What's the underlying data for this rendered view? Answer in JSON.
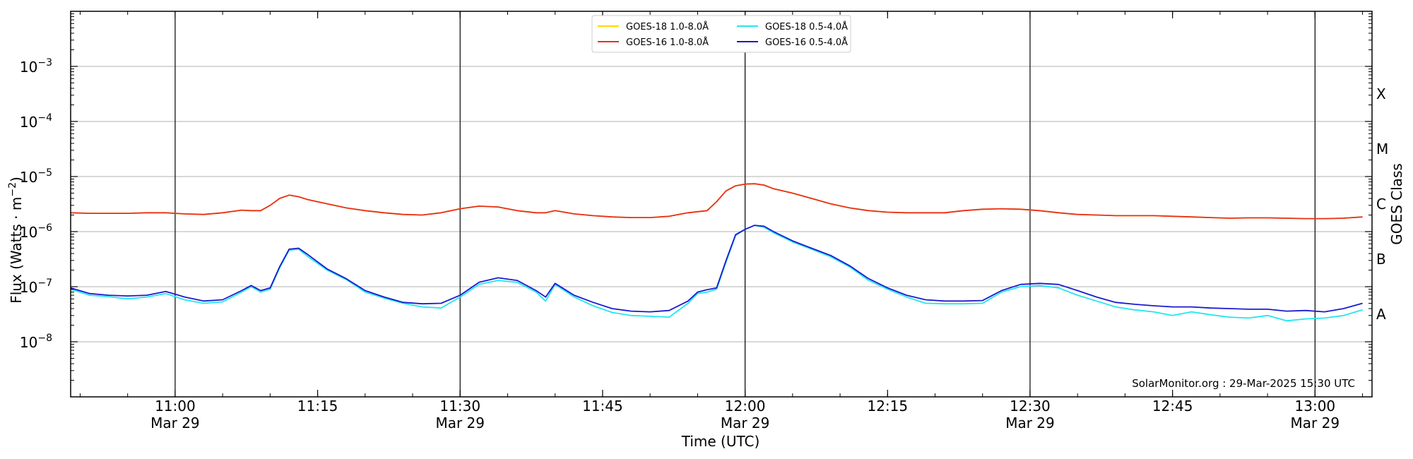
{
  "chart_data": {
    "type": "line",
    "xlabel": "Time (UTC)",
    "ylabel": "Flux (Watts · m",
    "ylabel_sup": "−2",
    "ylabel_close": ")",
    "right_label": "GOES Class",
    "credit": "SolarMonitor.org : 29-Mar-2025 15:30 UTC",
    "xlim": [
      "10:49",
      "13:06"
    ],
    "ylim_log10": [
      -9,
      -2
    ],
    "grid": "horizontal",
    "legend_placement": "top-center",
    "x_ticks": [
      {
        "time": "11:00",
        "line1": "11:00",
        "line2": "Mar 29",
        "major": true
      },
      {
        "time": "11:15",
        "line1": "11:15",
        "line2": "",
        "major": false
      },
      {
        "time": "11:30",
        "line1": "11:30",
        "line2": "Mar 29",
        "major": true
      },
      {
        "time": "11:45",
        "line1": "11:45",
        "line2": "",
        "major": false
      },
      {
        "time": "12:00",
        "line1": "12:00",
        "line2": "Mar 29",
        "major": true
      },
      {
        "time": "12:15",
        "line1": "12:15",
        "line2": "",
        "major": false
      },
      {
        "time": "12:30",
        "line1": "12:30",
        "line2": "Mar 29",
        "major": true
      },
      {
        "time": "12:45",
        "line1": "12:45",
        "line2": "",
        "major": false
      },
      {
        "time": "13:00",
        "line1": "13:00",
        "line2": "Mar 29",
        "major": true
      }
    ],
    "y_ticks": [
      {
        "exp": -8,
        "base": "10",
        "sup": "−8"
      },
      {
        "exp": -7,
        "base": "10",
        "sup": "−7"
      },
      {
        "exp": -6,
        "base": "10",
        "sup": "−6"
      },
      {
        "exp": -5,
        "base": "10",
        "sup": "−5"
      },
      {
        "exp": -4,
        "base": "10",
        "sup": "−4"
      },
      {
        "exp": -3,
        "base": "10",
        "sup": "−3"
      }
    ],
    "goes_classes": [
      {
        "label": "A",
        "exp": -7.5
      },
      {
        "label": "B",
        "exp": -6.5
      },
      {
        "label": "C",
        "exp": -5.5
      },
      {
        "label": "M",
        "exp": -4.5
      },
      {
        "label": "X",
        "exp": -3.5
      }
    ],
    "x": [
      "10:49",
      "10:51",
      "10:53",
      "10:55",
      "10:57",
      "10:59",
      "11:01",
      "11:03",
      "11:05",
      "11:07",
      "11:08",
      "11:09",
      "11:10",
      "11:11",
      "11:12",
      "11:13",
      "11:14",
      "11:16",
      "11:18",
      "11:20",
      "11:22",
      "11:24",
      "11:26",
      "11:28",
      "11:30",
      "11:32",
      "11:34",
      "11:36",
      "11:38",
      "11:39",
      "11:40",
      "11:42",
      "11:44",
      "11:46",
      "11:48",
      "11:50",
      "11:52",
      "11:54",
      "11:55",
      "11:56",
      "11:57",
      "11:58",
      "11:59",
      "12:00",
      "12:01",
      "12:02",
      "12:03",
      "12:05",
      "12:07",
      "12:09",
      "12:11",
      "12:13",
      "12:15",
      "12:17",
      "12:19",
      "12:21",
      "12:23",
      "12:25",
      "12:27",
      "12:29",
      "12:31",
      "12:33",
      "12:35",
      "12:37",
      "12:39",
      "12:41",
      "12:43",
      "12:45",
      "12:47",
      "12:49",
      "12:51",
      "12:53",
      "12:55",
      "12:57",
      "12:59",
      "13:01",
      "13:03",
      "13:05"
    ],
    "series": [
      {
        "name": "GOES-18 1.0-8.0Å",
        "color": "#ffd700",
        "values": [
          2.2e-06,
          2.15e-06,
          2.15e-06,
          2.15e-06,
          2.2e-06,
          2.2e-06,
          2.1e-06,
          2.05e-06,
          2.2e-06,
          2.45e-06,
          2.4e-06,
          2.4e-06,
          3e-06,
          4e-06,
          4.6e-06,
          4.3e-06,
          3.8e-06,
          3.2e-06,
          2.7e-06,
          2.4e-06,
          2.2e-06,
          2.05e-06,
          2e-06,
          2.2e-06,
          2.6e-06,
          2.9e-06,
          2.8e-06,
          2.4e-06,
          2.2e-06,
          2.2e-06,
          2.4e-06,
          2.1e-06,
          1.95e-06,
          1.85e-06,
          1.8e-06,
          1.8e-06,
          1.9e-06,
          2.2e-06,
          2.3e-06,
          2.4e-06,
          3.5e-06,
          5.5e-06,
          6.8e-06,
          7.3e-06,
          7.4e-06,
          7e-06,
          6e-06,
          5e-06,
          4e-06,
          3.2e-06,
          2.7e-06,
          2.4e-06,
          2.25e-06,
          2.2e-06,
          2.2e-06,
          2.2e-06,
          2.4e-06,
          2.55e-06,
          2.6e-06,
          2.55e-06,
          2.4e-06,
          2.2e-06,
          2.05e-06,
          2e-06,
          1.95e-06,
          1.95e-06,
          1.95e-06,
          1.9e-06,
          1.85e-06,
          1.8e-06,
          1.75e-06,
          1.78e-06,
          1.78e-06,
          1.75e-06,
          1.72e-06,
          1.72e-06,
          1.75e-06,
          1.85e-06
        ]
      },
      {
        "name": "GOES-16 1.0-8.0Å",
        "color": "#e8301c",
        "values": [
          2.2e-06,
          2.15e-06,
          2.15e-06,
          2.15e-06,
          2.2e-06,
          2.2e-06,
          2.1e-06,
          2.05e-06,
          2.2e-06,
          2.45e-06,
          2.4e-06,
          2.4e-06,
          3e-06,
          4e-06,
          4.6e-06,
          4.3e-06,
          3.8e-06,
          3.2e-06,
          2.7e-06,
          2.4e-06,
          2.2e-06,
          2.05e-06,
          2e-06,
          2.2e-06,
          2.6e-06,
          2.9e-06,
          2.8e-06,
          2.4e-06,
          2.2e-06,
          2.2e-06,
          2.4e-06,
          2.1e-06,
          1.95e-06,
          1.85e-06,
          1.8e-06,
          1.8e-06,
          1.9e-06,
          2.2e-06,
          2.3e-06,
          2.4e-06,
          3.5e-06,
          5.5e-06,
          6.8e-06,
          7.3e-06,
          7.4e-06,
          7e-06,
          6e-06,
          5e-06,
          4e-06,
          3.2e-06,
          2.7e-06,
          2.4e-06,
          2.25e-06,
          2.2e-06,
          2.2e-06,
          2.2e-06,
          2.4e-06,
          2.55e-06,
          2.6e-06,
          2.55e-06,
          2.4e-06,
          2.2e-06,
          2.05e-06,
          2e-06,
          1.95e-06,
          1.95e-06,
          1.95e-06,
          1.9e-06,
          1.85e-06,
          1.8e-06,
          1.75e-06,
          1.78e-06,
          1.78e-06,
          1.75e-06,
          1.72e-06,
          1.72e-06,
          1.75e-06,
          1.85e-06
        ]
      },
      {
        "name": "GOES-18 0.5-4.0Å",
        "color": "#22e6f0",
        "values": [
          9e-08,
          7e-08,
          6.6e-08,
          6e-08,
          6.5e-08,
          7.5e-08,
          5.8e-08,
          5e-08,
          5.3e-08,
          8e-08,
          1e-07,
          8e-08,
          9e-08,
          2.2e-07,
          4.6e-07,
          4.8e-07,
          3.5e-07,
          2e-07,
          1.35e-07,
          8e-08,
          6.2e-08,
          5e-08,
          4.3e-08,
          4.1e-08,
          6.5e-08,
          1.1e-07,
          1.3e-07,
          1.2e-07,
          8e-08,
          5.5e-08,
          1.1e-07,
          6.5e-08,
          4.5e-08,
          3.4e-08,
          3e-08,
          2.9e-08,
          2.8e-08,
          5e-08,
          7.5e-08,
          8e-08,
          9e-08,
          2.8e-07,
          8.5e-07,
          1.1e-06,
          1.3e-06,
          1.2e-06,
          9.5e-07,
          6.5e-07,
          4.8e-07,
          3.5e-07,
          2.3e-07,
          1.3e-07,
          9e-08,
          6.5e-08,
          5e-08,
          4.9e-08,
          4.9e-08,
          5e-08,
          8e-08,
          1e-07,
          1.05e-07,
          9.5e-08,
          7e-08,
          5.5e-08,
          4.3e-08,
          3.8e-08,
          3.5e-08,
          3e-08,
          3.5e-08,
          3.1e-08,
          2.8e-08,
          2.7e-08,
          3e-08,
          2.4e-08,
          2.6e-08,
          2.7e-08,
          3e-08,
          3.8e-08
        ]
      },
      {
        "name": "GOES-16 0.5-4.0Å",
        "color": "#1a1ad0",
        "values": [
          9.5e-08,
          7.5e-08,
          7e-08,
          6.8e-08,
          7e-08,
          8.2e-08,
          6.5e-08,
          5.5e-08,
          5.8e-08,
          8.5e-08,
          1.05e-07,
          8.5e-08,
          9.5e-08,
          2.3e-07,
          4.8e-07,
          5e-07,
          3.8e-07,
          2.1e-07,
          1.4e-07,
          8.5e-08,
          6.5e-08,
          5.2e-08,
          4.9e-08,
          5e-08,
          7e-08,
          1.2e-07,
          1.45e-07,
          1.3e-07,
          8.5e-08,
          6.5e-08,
          1.15e-07,
          7e-08,
          5.2e-08,
          4e-08,
          3.6e-08,
          3.5e-08,
          3.7e-08,
          5.5e-08,
          8e-08,
          8.8e-08,
          9.5e-08,
          3e-07,
          8.8e-07,
          1.1e-06,
          1.3e-06,
          1.25e-06,
          1e-06,
          6.8e-07,
          5e-07,
          3.7e-07,
          2.4e-07,
          1.4e-07,
          9.5e-08,
          7e-08,
          5.8e-08,
          5.5e-08,
          5.5e-08,
          5.6e-08,
          8.5e-08,
          1.1e-07,
          1.15e-07,
          1.1e-07,
          8.5e-08,
          6.5e-08,
          5.2e-08,
          4.8e-08,
          4.5e-08,
          4.3e-08,
          4.3e-08,
          4.1e-08,
          4e-08,
          3.9e-08,
          3.9e-08,
          3.6e-08,
          3.7e-08,
          3.5e-08,
          4e-08,
          5e-08
        ]
      }
    ]
  }
}
